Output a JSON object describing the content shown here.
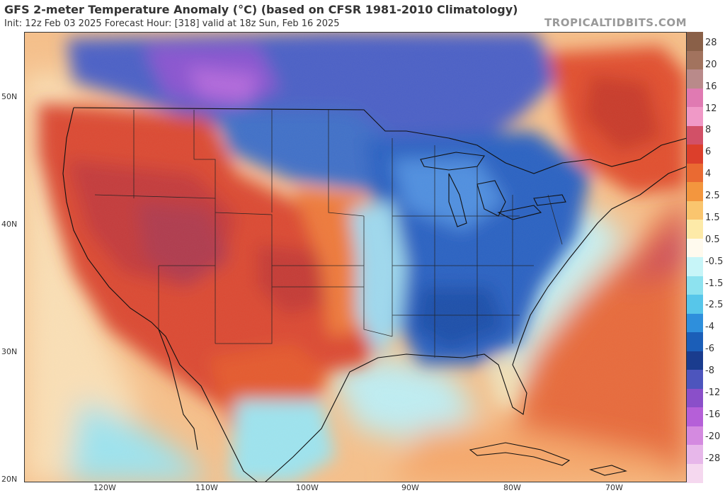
{
  "header": {
    "title": "GFS 2-meter Temperature Anomaly (°C) (based on CFSR 1981-2010 Climatology)",
    "subtitle": "Init: 12z Feb 03 2025   Forecast Hour: [318]   valid at 18z Sun, Feb 16 2025",
    "watermark": "TROPICALTIDBITS.COM"
  },
  "map": {
    "latitude_labels": [
      "50N",
      "40N",
      "30N",
      "20N"
    ],
    "longitude_labels": [
      "120W",
      "110W",
      "100W",
      "90W",
      "80W",
      "70W"
    ]
  },
  "colorbar": {
    "labels": [
      "28",
      "20",
      "16",
      "12",
      "8",
      "6",
      "4",
      "2.5",
      "1.5",
      "0.5",
      "-0.5",
      "-1.5",
      "-2.5",
      "-4",
      "-6",
      "-8",
      "-12",
      "-16",
      "-20",
      "-28"
    ],
    "colors": [
      "#8a6048",
      "#a2735e",
      "#b98a8a",
      "#e07ab2",
      "#f099c7",
      "#d25067",
      "#dc3f2b",
      "#ea6a32",
      "#f3963e",
      "#fac56e",
      "#fdeaa8",
      "#fffaee",
      "#c7f5f8",
      "#8de2ef",
      "#57c6ea",
      "#2e8fdc",
      "#1b5eb8",
      "#1a3c8e",
      "#4d55bd",
      "#8a4fc9",
      "#b55fd8",
      "#d48ae0",
      "#e7b7ea",
      "#f5d8ef"
    ]
  },
  "colors": {
    "ocean_warm": "#f2a869",
    "land_cold": "#2a62c2",
    "land_warm": "#d7402e"
  }
}
